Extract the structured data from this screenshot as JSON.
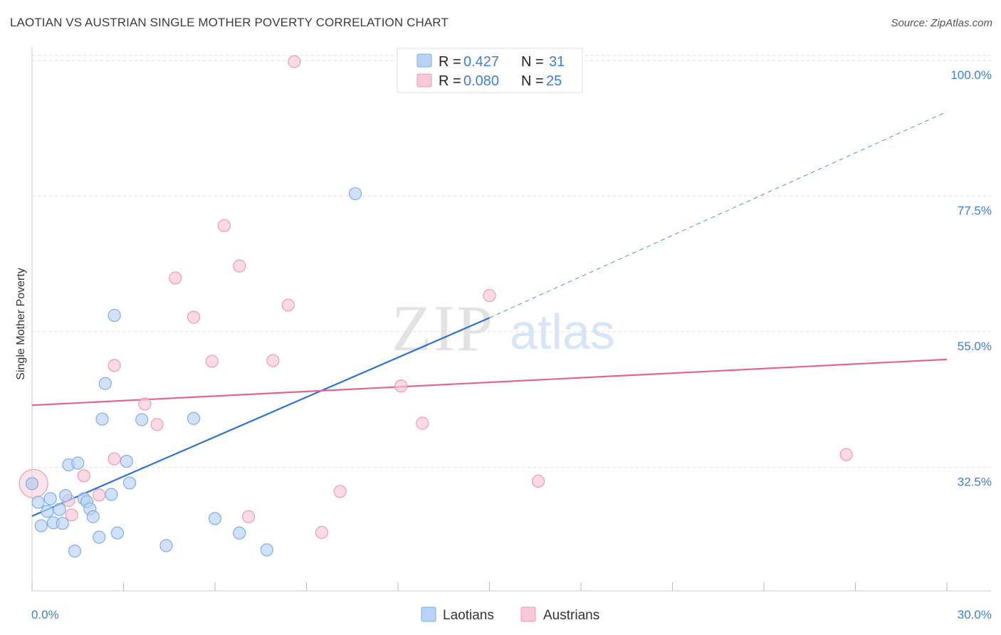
{
  "title": "LAOTIAN VS AUSTRIAN SINGLE MOTHER POVERTY CORRELATION CHART",
  "source": "Source: ZipAtlas.com",
  "watermark": {
    "zip": "ZIP",
    "atlas": "atlas"
  },
  "legend": {
    "r_label": "R =",
    "n_label": "N =",
    "rows": [
      {
        "series": "Laotians",
        "r": "0.427",
        "n": "31"
      },
      {
        "series": "Austrians",
        "r": "0.080",
        "n": "25"
      }
    ]
  },
  "colors": {
    "laotians_fill": "#b8d3f5",
    "laotians_stroke": "#7eaee6",
    "laotians_line": "#2a72d0",
    "austrians_fill": "#f8c8d6",
    "austrians_stroke": "#ef9ab4",
    "austrians_line": "#e06690",
    "tick_label": "#3d7fd6",
    "grid": "#dddddd"
  },
  "chart_data": {
    "type": "scatter",
    "title": "LAOTIAN VS AUSTRIAN SINGLE MOTHER POVERTY CORRELATION CHART",
    "xlabel": "",
    "ylabel": "Single Mother Poverty",
    "xlim": [
      0,
      30
    ],
    "ylim": [
      12,
      102
    ],
    "x_tick_labels": [
      "0.0%",
      "30.0%"
    ],
    "y_ticks": [
      32.5,
      55.0,
      77.5,
      100.0
    ],
    "y_tick_labels": [
      "32.5%",
      "55.0%",
      "77.5%",
      "100.0%"
    ],
    "grid": "horizontal dashed",
    "legend_position": "top-center",
    "series": [
      {
        "name": "Laotians",
        "points": [
          [
            0.0,
            29.8
          ],
          [
            0.2,
            26.7
          ],
          [
            0.3,
            22.8
          ],
          [
            0.5,
            25.2
          ],
          [
            0.6,
            27.3
          ],
          [
            0.7,
            23.3
          ],
          [
            0.9,
            25.5
          ],
          [
            1.0,
            23.2
          ],
          [
            1.1,
            27.8
          ],
          [
            1.2,
            32.9
          ],
          [
            1.4,
            18.6
          ],
          [
            1.5,
            33.2
          ],
          [
            1.7,
            27.3
          ],
          [
            1.8,
            26.8
          ],
          [
            1.9,
            25.6
          ],
          [
            2.0,
            24.3
          ],
          [
            2.2,
            20.9
          ],
          [
            2.3,
            40.5
          ],
          [
            2.4,
            46.4
          ],
          [
            2.6,
            28.0
          ],
          [
            2.7,
            57.7
          ],
          [
            2.8,
            21.6
          ],
          [
            3.1,
            33.5
          ],
          [
            3.2,
            29.9
          ],
          [
            3.6,
            40.4
          ],
          [
            4.4,
            19.5
          ],
          [
            5.3,
            40.6
          ],
          [
            6.0,
            24.0
          ],
          [
            6.8,
            21.6
          ],
          [
            7.7,
            18.8
          ],
          [
            10.6,
            77.9
          ]
        ],
        "trendline": {
          "x": [
            0,
            15.0
          ],
          "y": [
            24.4,
            57.3
          ],
          "dashed_to": [
            30,
            91.5
          ]
        }
      },
      {
        "name": "Austrians",
        "points": [
          [
            0.0,
            29.8
          ],
          [
            1.3,
            24.6
          ],
          [
            1.2,
            27.0
          ],
          [
            1.7,
            31.1
          ],
          [
            2.2,
            27.9
          ],
          [
            2.7,
            49.4
          ],
          [
            2.7,
            33.9
          ],
          [
            3.7,
            43.0
          ],
          [
            4.1,
            39.6
          ],
          [
            4.7,
            63.9
          ],
          [
            5.3,
            57.4
          ],
          [
            5.9,
            50.1
          ],
          [
            6.3,
            72.6
          ],
          [
            6.8,
            65.9
          ],
          [
            7.1,
            24.3
          ],
          [
            7.9,
            50.2
          ],
          [
            8.4,
            59.4
          ],
          [
            8.6,
            99.8
          ],
          [
            9.5,
            21.7
          ],
          [
            10.1,
            28.5
          ],
          [
            12.1,
            46.0
          ],
          [
            12.8,
            39.8
          ],
          [
            15.0,
            61.0
          ],
          [
            16.6,
            30.2
          ],
          [
            26.7,
            34.6
          ]
        ],
        "trendline": {
          "x": [
            0,
            30
          ],
          "y": [
            42.8,
            50.4
          ]
        }
      }
    ]
  }
}
